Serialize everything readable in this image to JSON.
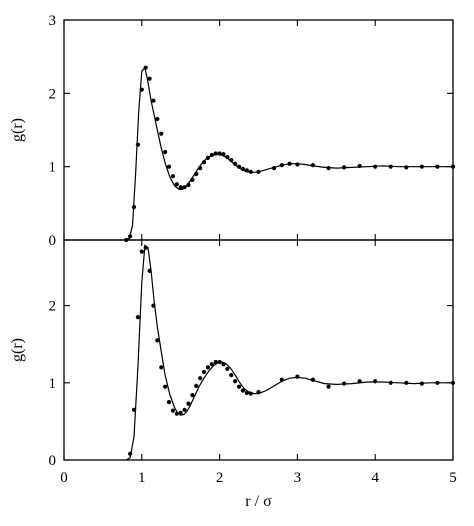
{
  "chart_data": [
    {
      "type": "line",
      "panel": "top",
      "ylabel": "g(r)",
      "xlabel": "",
      "xlim": [
        0,
        5
      ],
      "ylim": [
        0,
        3
      ],
      "yticks": [
        "0",
        "1",
        "2",
        "3"
      ],
      "xticks": [],
      "series": [
        {
          "style": "solid-line",
          "x": [
            0.78,
            0.84,
            0.88,
            0.92,
            0.96,
            1.0,
            1.04,
            1.08,
            1.12,
            1.18,
            1.24,
            1.3,
            1.36,
            1.42,
            1.48,
            1.52,
            1.56,
            1.62,
            1.68,
            1.74,
            1.8,
            1.86,
            1.92,
            1.98,
            2.02,
            2.06,
            2.12,
            2.18,
            2.24,
            2.3,
            2.36,
            2.42,
            2.5,
            2.6,
            2.7,
            2.8,
            2.9,
            3.0,
            3.1,
            3.2,
            3.35,
            3.5,
            3.7,
            3.9,
            4.1,
            4.3,
            4.5,
            4.7,
            4.9,
            5.0
          ],
          "y": [
            0.0,
            0.02,
            0.2,
            0.9,
            1.75,
            2.3,
            2.35,
            2.15,
            1.9,
            1.6,
            1.3,
            1.05,
            0.86,
            0.74,
            0.69,
            0.69,
            0.72,
            0.8,
            0.9,
            1.0,
            1.08,
            1.13,
            1.16,
            1.17,
            1.16,
            1.14,
            1.1,
            1.04,
            0.99,
            0.95,
            0.93,
            0.92,
            0.93,
            0.96,
            0.99,
            1.02,
            1.04,
            1.04,
            1.03,
            1.01,
            0.99,
            0.98,
            0.99,
            1.0,
            1.01,
            1.0,
            1.0,
            1.0,
            1.0,
            1.0
          ]
        },
        {
          "style": "points",
          "x": [
            0.8,
            0.85,
            0.9,
            0.95,
            1.0,
            1.05,
            1.1,
            1.15,
            1.2,
            1.25,
            1.3,
            1.35,
            1.4,
            1.45,
            1.5,
            1.55,
            1.6,
            1.65,
            1.7,
            1.75,
            1.8,
            1.85,
            1.9,
            1.95,
            2.0,
            2.05,
            2.1,
            2.15,
            2.2,
            2.25,
            2.3,
            2.35,
            2.4,
            2.5,
            2.7,
            2.8,
            2.9,
            3.0,
            3.2,
            3.4,
            3.6,
            3.8,
            4.0,
            4.2,
            4.4,
            4.6,
            4.8,
            5.0
          ],
          "y": [
            0.0,
            0.05,
            0.45,
            1.3,
            2.05,
            2.35,
            2.2,
            1.9,
            1.65,
            1.45,
            1.2,
            1.0,
            0.87,
            0.76,
            0.72,
            0.72,
            0.75,
            0.82,
            0.9,
            0.98,
            1.06,
            1.12,
            1.16,
            1.18,
            1.18,
            1.17,
            1.13,
            1.09,
            1.04,
            1.0,
            0.97,
            0.95,
            0.93,
            0.93,
            0.98,
            1.02,
            1.04,
            1.03,
            1.02,
            0.98,
            0.99,
            1.01,
            1.0,
            1.0,
            0.99,
            1.0,
            1.0,
            1.0
          ]
        }
      ]
    },
    {
      "type": "line",
      "panel": "bottom",
      "ylabel": "g(r)",
      "xlabel": "r  /  σ",
      "xlim": [
        0,
        5
      ],
      "ylim": [
        0,
        2.85
      ],
      "yticks": [
        "0",
        "1",
        "2"
      ],
      "xticks": [
        "0",
        "1",
        "2",
        "3",
        "4",
        "5"
      ],
      "series": [
        {
          "style": "solid-line",
          "x": [
            0.8,
            0.85,
            0.9,
            0.95,
            1.0,
            1.04,
            1.08,
            1.12,
            1.16,
            1.2,
            1.25,
            1.3,
            1.36,
            1.42,
            1.46,
            1.5,
            1.54,
            1.58,
            1.62,
            1.68,
            1.74,
            1.8,
            1.86,
            1.92,
            1.98,
            2.03,
            2.08,
            2.14,
            2.2,
            2.26,
            2.32,
            2.38,
            2.44,
            2.5,
            2.6,
            2.7,
            2.8,
            2.9,
            3.0,
            3.1,
            3.2,
            3.35,
            3.5,
            3.7,
            3.9,
            4.1,
            4.3,
            4.5,
            4.7,
            4.9,
            5.0
          ],
          "y": [
            0.0,
            0.03,
            0.3,
            1.2,
            2.3,
            2.78,
            2.75,
            2.45,
            2.05,
            1.72,
            1.4,
            1.1,
            0.85,
            0.68,
            0.61,
            0.58,
            0.59,
            0.63,
            0.7,
            0.83,
            0.96,
            1.06,
            1.15,
            1.22,
            1.26,
            1.27,
            1.25,
            1.19,
            1.1,
            1.0,
            0.92,
            0.88,
            0.86,
            0.86,
            0.9,
            0.96,
            1.02,
            1.06,
            1.07,
            1.06,
            1.03,
            0.99,
            0.98,
            0.99,
            1.01,
            1.01,
            1.0,
            0.99,
            1.0,
            1.0,
            1.0
          ]
        },
        {
          "style": "points",
          "x": [
            0.85,
            0.9,
            0.95,
            1.0,
            1.05,
            1.1,
            1.15,
            1.2,
            1.25,
            1.3,
            1.35,
            1.4,
            1.45,
            1.5,
            1.55,
            1.6,
            1.65,
            1.7,
            1.75,
            1.8,
            1.85,
            1.9,
            1.95,
            2.0,
            2.05,
            2.1,
            2.15,
            2.2,
            2.25,
            2.3,
            2.35,
            2.4,
            2.5,
            2.8,
            3.0,
            3.2,
            3.4,
            3.6,
            3.8,
            4.0,
            4.2,
            4.4,
            4.6,
            4.8,
            5.0
          ],
          "y": [
            0.08,
            0.65,
            1.85,
            2.7,
            2.75,
            2.45,
            2.0,
            1.55,
            1.2,
            0.95,
            0.75,
            0.64,
            0.6,
            0.61,
            0.65,
            0.73,
            0.84,
            0.96,
            1.06,
            1.14,
            1.2,
            1.24,
            1.27,
            1.27,
            1.24,
            1.18,
            1.1,
            1.02,
            0.95,
            0.9,
            0.87,
            0.86,
            0.88,
            1.04,
            1.08,
            1.04,
            0.95,
            0.99,
            1.02,
            1.02,
            1.0,
            1.0,
            0.99,
            1.0,
            1.0
          ]
        }
      ]
    }
  ]
}
